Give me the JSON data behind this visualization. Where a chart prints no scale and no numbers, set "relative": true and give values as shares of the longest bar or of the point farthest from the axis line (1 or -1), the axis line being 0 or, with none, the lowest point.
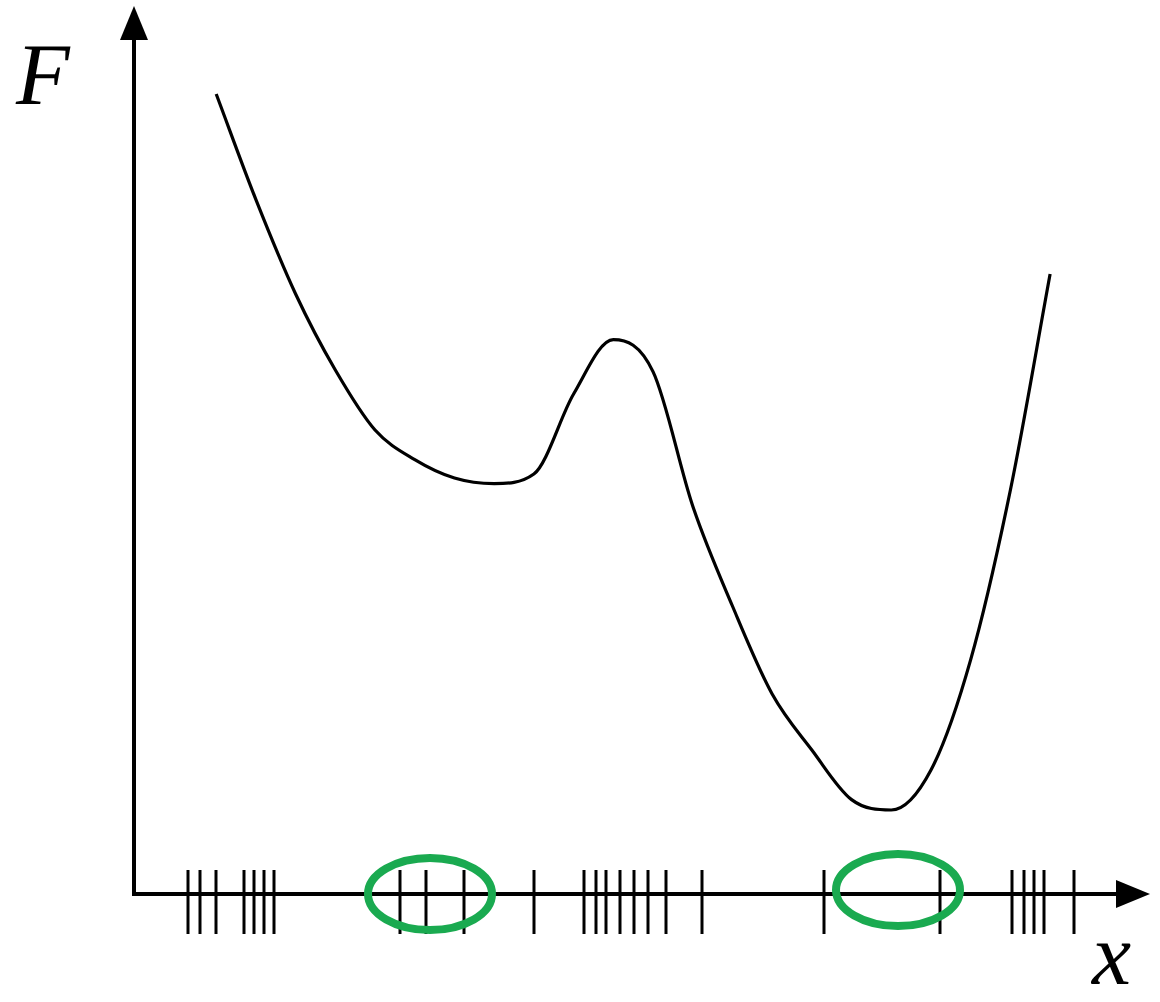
{
  "chart_data": {
    "type": "line",
    "relative": true,
    "xlabel": "x",
    "ylabel": "F",
    "categories": [
      null,
      null,
      null,
      null,
      null,
      null,
      null,
      null,
      null,
      null,
      null,
      null,
      null,
      null,
      null,
      null,
      null,
      null,
      null,
      null,
      null,
      null
    ],
    "series": [
      {
        "color": "#000000",
        "values": [
          1.0,
          0.868,
          0.75,
          0.655,
          0.58,
          0.543,
          0.52,
          0.513,
          0.525,
          0.625,
          0.693,
          0.653,
          0.485,
          0.36,
          0.25,
          0.18,
          0.118,
          0.105,
          0.155,
          0.293,
          0.505,
          0.775
        ]
      }
    ],
    "marker": "none",
    "line_style": "solid",
    "legend": false
  }
}
